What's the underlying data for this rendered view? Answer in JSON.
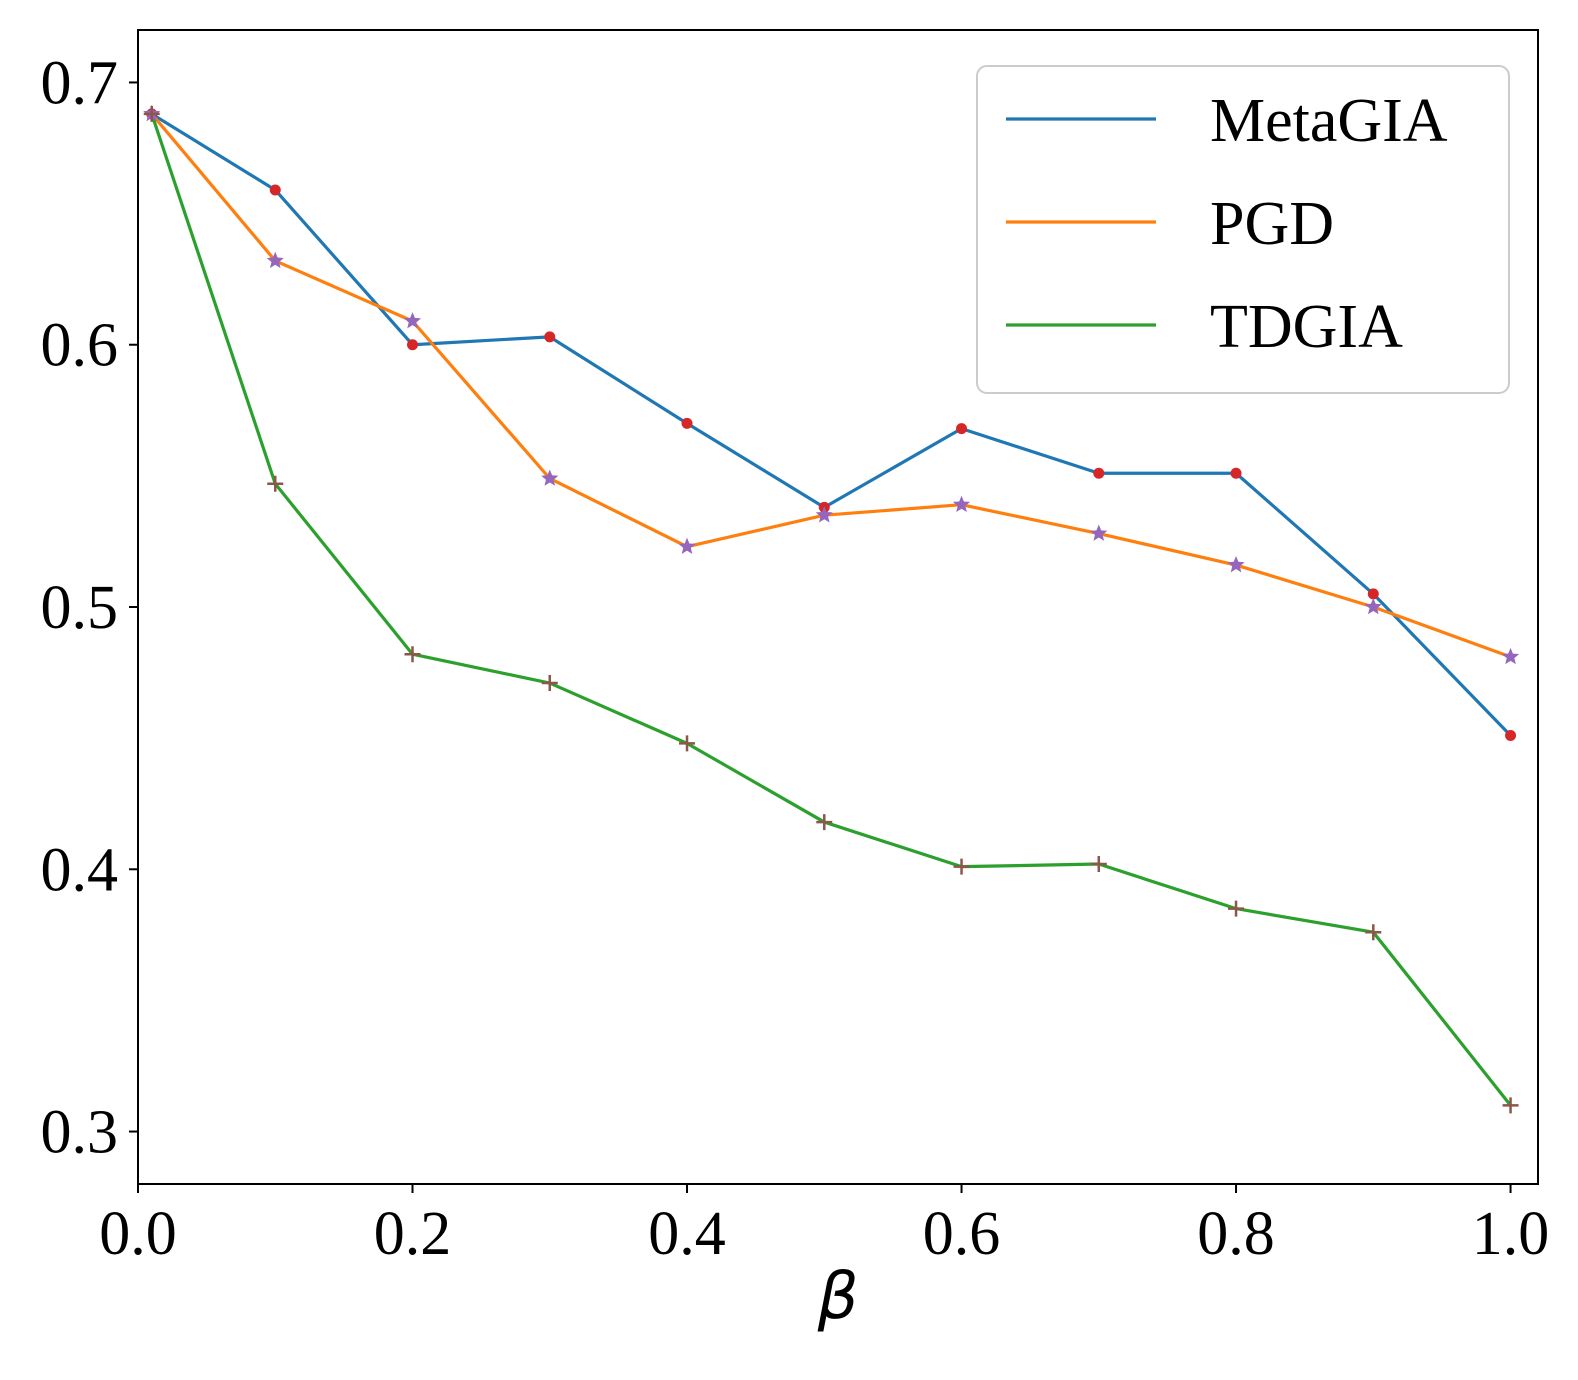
{
  "chart_data": {
    "type": "line",
    "title": "",
    "xlabel": "β",
    "ylabel": "",
    "xlim": [
      0.0,
      1.02
    ],
    "ylim": [
      0.28,
      0.72
    ],
    "xticks": [
      0.0,
      0.2,
      0.4,
      0.6,
      0.8,
      1.0
    ],
    "xtick_labels": [
      "0.0",
      "0.2",
      "0.4",
      "0.6",
      "0.8",
      "1.0"
    ],
    "yticks": [
      0.3,
      0.4,
      0.5,
      0.6,
      0.7
    ],
    "ytick_labels": [
      "0.3",
      "0.4",
      "0.5",
      "0.6",
      "0.7"
    ],
    "x": [
      0.01,
      0.1,
      0.2,
      0.3,
      0.4,
      0.5,
      0.6,
      0.7,
      0.8,
      0.9,
      1.0
    ],
    "legend_position": "top-right",
    "series": [
      {
        "name": "MetaGIA",
        "color": "#1f77b4",
        "marker": "dot",
        "marker_color": "#d62728",
        "values": [
          0.688,
          0.659,
          0.6,
          0.603,
          0.57,
          0.538,
          0.568,
          0.551,
          0.551,
          0.505,
          0.451
        ]
      },
      {
        "name": "PGD",
        "color": "#ff7f0e",
        "marker": "star",
        "marker_color": "#9467bd",
        "values": [
          0.688,
          0.632,
          0.609,
          0.549,
          0.523,
          0.535,
          0.539,
          0.528,
          0.516,
          0.5,
          0.481
        ]
      },
      {
        "name": "TDGIA",
        "color": "#2ca02c",
        "marker": "plus",
        "marker_color": "#8c564b",
        "values": [
          0.688,
          0.547,
          0.482,
          0.471,
          0.448,
          0.418,
          0.401,
          0.402,
          0.385,
          0.376,
          0.31
        ]
      }
    ]
  }
}
